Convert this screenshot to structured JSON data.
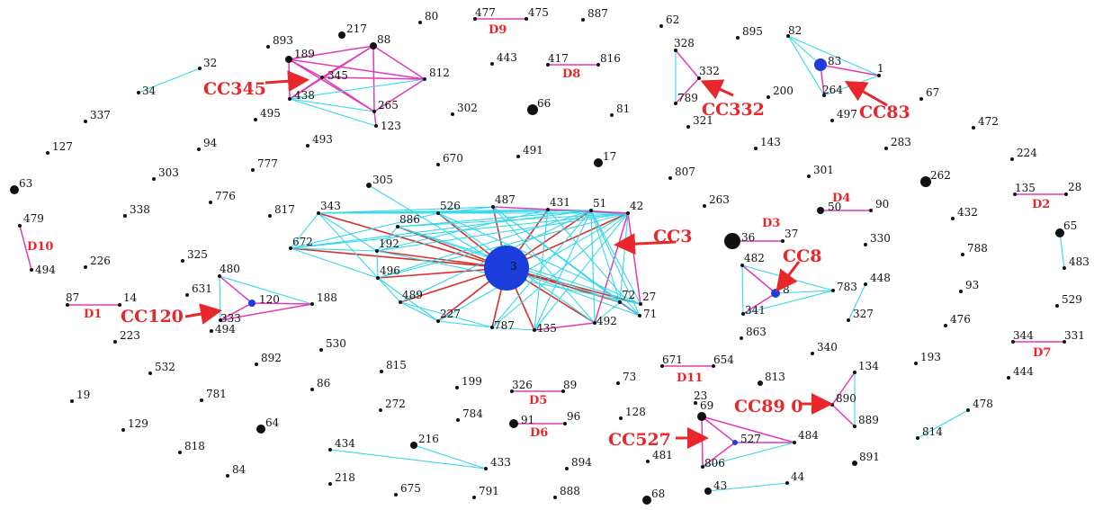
{
  "colors": {
    "background": "#ffffff",
    "node": "#111111",
    "hub_node": "#1a3ddb",
    "label_red": "#e8262b",
    "edge_cyan": "#35d8e8",
    "edge_magenta": "#e13ab8",
    "edge_red": "#d8302c"
  },
  "nodes": [
    {
      "id": "80",
      "label": "80"
    },
    {
      "id": "217",
      "label": "217"
    },
    {
      "id": "477",
      "label": "477"
    },
    {
      "id": "475",
      "label": "475"
    },
    {
      "id": "887",
      "label": "887"
    },
    {
      "id": "62",
      "label": "62"
    },
    {
      "id": "895",
      "label": "895"
    },
    {
      "id": "82",
      "label": "82"
    },
    {
      "id": "893",
      "label": "893"
    },
    {
      "id": "189",
      "label": "189"
    },
    {
      "id": "88",
      "label": "88"
    },
    {
      "id": "345",
      "label": "345"
    },
    {
      "id": "812",
      "label": "812"
    },
    {
      "id": "438",
      "label": "438"
    },
    {
      "id": "265",
      "label": "265"
    },
    {
      "id": "123",
      "label": "123"
    },
    {
      "id": "32",
      "label": "32"
    },
    {
      "id": "34",
      "label": "34"
    },
    {
      "id": "443",
      "label": "443"
    },
    {
      "id": "417",
      "label": "417"
    },
    {
      "id": "816",
      "label": "816"
    },
    {
      "id": "328",
      "label": "328"
    },
    {
      "id": "332",
      "label": "332"
    },
    {
      "id": "789",
      "label": "789"
    },
    {
      "id": "83",
      "label": "83"
    },
    {
      "id": "1",
      "label": "1"
    },
    {
      "id": "264",
      "label": "264"
    },
    {
      "id": "200",
      "label": "200"
    },
    {
      "id": "67",
      "label": "67"
    },
    {
      "id": "495",
      "label": "495"
    },
    {
      "id": "302",
      "label": "302"
    },
    {
      "id": "66",
      "label": "66"
    },
    {
      "id": "81",
      "label": "81"
    },
    {
      "id": "321",
      "label": "321"
    },
    {
      "id": "497",
      "label": "497"
    },
    {
      "id": "472",
      "label": "472"
    },
    {
      "id": "337",
      "label": "337"
    },
    {
      "id": "127",
      "label": "127"
    },
    {
      "id": "94",
      "label": "94"
    },
    {
      "id": "493",
      "label": "493"
    },
    {
      "id": "491",
      "label": "491"
    },
    {
      "id": "17",
      "label": "17"
    },
    {
      "id": "670",
      "label": "670"
    },
    {
      "id": "143",
      "label": "143"
    },
    {
      "id": "283",
      "label": "283"
    },
    {
      "id": "224",
      "label": "224"
    },
    {
      "id": "303",
      "label": "303"
    },
    {
      "id": "777",
      "label": "777"
    },
    {
      "id": "807",
      "label": "807"
    },
    {
      "id": "301",
      "label": "301"
    },
    {
      "id": "262",
      "label": "262"
    },
    {
      "id": "63",
      "label": "63"
    },
    {
      "id": "305",
      "label": "305"
    },
    {
      "id": "135",
      "label": "135"
    },
    {
      "id": "28",
      "label": "28"
    },
    {
      "id": "776",
      "label": "776"
    },
    {
      "id": "263",
      "label": "263"
    },
    {
      "id": "50",
      "label": "50"
    },
    {
      "id": "90",
      "label": "90"
    },
    {
      "id": "338",
      "label": "338"
    },
    {
      "id": "817",
      "label": "817"
    },
    {
      "id": "343",
      "label": "343"
    },
    {
      "id": "526",
      "label": "526"
    },
    {
      "id": "487",
      "label": "487"
    },
    {
      "id": "431",
      "label": "431"
    },
    {
      "id": "51",
      "label": "51"
    },
    {
      "id": "42",
      "label": "42"
    },
    {
      "id": "432",
      "label": "432"
    },
    {
      "id": "479",
      "label": "479"
    },
    {
      "id": "886",
      "label": "886"
    },
    {
      "id": "65",
      "label": "65"
    },
    {
      "id": "36",
      "label": "36"
    },
    {
      "id": "37",
      "label": "37"
    },
    {
      "id": "330",
      "label": "330"
    },
    {
      "id": "672",
      "label": "672"
    },
    {
      "id": "192",
      "label": "192"
    },
    {
      "id": "3",
      "label": "3"
    },
    {
      "id": "788",
      "label": "788"
    },
    {
      "id": "494",
      "label": "494"
    },
    {
      "id": "226",
      "label": "226"
    },
    {
      "id": "325",
      "label": "325"
    },
    {
      "id": "480",
      "label": "480"
    },
    {
      "id": "482",
      "label": "482"
    },
    {
      "id": "483",
      "label": "483"
    },
    {
      "id": "496",
      "label": "496"
    },
    {
      "id": "27",
      "label": "27"
    },
    {
      "id": "783",
      "label": "783"
    },
    {
      "id": "448",
      "label": "448"
    },
    {
      "id": "8",
      "label": "8"
    },
    {
      "id": "93",
      "label": "93"
    },
    {
      "id": "631",
      "label": "631"
    },
    {
      "id": "120",
      "label": "120"
    },
    {
      "id": "188",
      "label": "188"
    },
    {
      "id": "87",
      "label": "87"
    },
    {
      "id": "14",
      "label": "14"
    },
    {
      "id": "489",
      "label": "489"
    },
    {
      "id": "72",
      "label": "72"
    },
    {
      "id": "71",
      "label": "71"
    },
    {
      "id": "327",
      "label": "327"
    },
    {
      "id": "529",
      "label": "529"
    },
    {
      "id": "341",
      "label": "341"
    },
    {
      "id": "333",
      "label": "333"
    },
    {
      "id": "494b",
      "label": "494"
    },
    {
      "id": "227",
      "label": "227"
    },
    {
      "id": "787",
      "label": "787"
    },
    {
      "id": "435",
      "label": "435"
    },
    {
      "id": "492",
      "label": "492"
    },
    {
      "id": "476",
      "label": "476"
    },
    {
      "id": "223",
      "label": "223"
    },
    {
      "id": "863",
      "label": "863"
    },
    {
      "id": "344",
      "label": "344"
    },
    {
      "id": "331",
      "label": "331"
    },
    {
      "id": "530",
      "label": "530"
    },
    {
      "id": "340",
      "label": "340"
    },
    {
      "id": "892",
      "label": "892"
    },
    {
      "id": "671",
      "label": "671"
    },
    {
      "id": "654",
      "label": "654"
    },
    {
      "id": "193",
      "label": "193"
    },
    {
      "id": "532",
      "label": "532"
    },
    {
      "id": "815",
      "label": "815"
    },
    {
      "id": "444",
      "label": "444"
    },
    {
      "id": "813",
      "label": "813"
    },
    {
      "id": "134",
      "label": "134"
    },
    {
      "id": "199",
      "label": "199"
    },
    {
      "id": "326",
      "label": "326"
    },
    {
      "id": "89",
      "label": "89"
    },
    {
      "id": "73",
      "label": "73"
    },
    {
      "id": "86",
      "label": "86"
    },
    {
      "id": "19",
      "label": "19"
    },
    {
      "id": "781",
      "label": "781"
    },
    {
      "id": "272",
      "label": "272"
    },
    {
      "id": "23",
      "label": "23"
    },
    {
      "id": "890",
      "label": "890"
    },
    {
      "id": "784",
      "label": "784"
    },
    {
      "id": "91",
      "label": "91"
    },
    {
      "id": "96",
      "label": "96"
    },
    {
      "id": "128",
      "label": "128"
    },
    {
      "id": "69",
      "label": "69"
    },
    {
      "id": "889",
      "label": "889"
    },
    {
      "id": "478",
      "label": "478"
    },
    {
      "id": "129",
      "label": "129"
    },
    {
      "id": "64",
      "label": "64"
    },
    {
      "id": "527",
      "label": "527"
    },
    {
      "id": "484",
      "label": "484"
    },
    {
      "id": "814",
      "label": "814"
    },
    {
      "id": "818",
      "label": "818"
    },
    {
      "id": "434",
      "label": "434"
    },
    {
      "id": "216",
      "label": "216"
    },
    {
      "id": "481",
      "label": "481"
    },
    {
      "id": "806",
      "label": "806"
    },
    {
      "id": "891",
      "label": "891"
    },
    {
      "id": "433",
      "label": "433"
    },
    {
      "id": "894",
      "label": "894"
    },
    {
      "id": "84",
      "label": "84"
    },
    {
      "id": "218",
      "label": "218"
    },
    {
      "id": "44",
      "label": "44"
    },
    {
      "id": "43",
      "label": "43"
    },
    {
      "id": "675",
      "label": "675"
    },
    {
      "id": "791",
      "label": "791"
    },
    {
      "id": "888",
      "label": "888"
    },
    {
      "id": "68",
      "label": "68"
    }
  ],
  "edges": [
    [
      "477",
      "475",
      "magenta"
    ],
    [
      "417",
      "816",
      "magenta"
    ],
    [
      "32",
      "34",
      "cyan"
    ],
    [
      "328",
      "332",
      "magenta"
    ],
    [
      "332",
      "789",
      "magenta"
    ],
    [
      "328",
      "789",
      "cyan"
    ],
    [
      "82",
      "83",
      "cyan"
    ],
    [
      "82",
      "1",
      "cyan"
    ],
    [
      "83",
      "1",
      "magenta"
    ],
    [
      "83",
      "264",
      "magenta"
    ],
    [
      "82",
      "264",
      "cyan"
    ],
    [
      "264",
      "1",
      "cyan"
    ],
    [
      "189",
      "88",
      "magenta"
    ],
    [
      "189",
      "345",
      "magenta"
    ],
    [
      "189",
      "812",
      "magenta"
    ],
    [
      "189",
      "438",
      "magenta"
    ],
    [
      "189",
      "265",
      "magenta"
    ],
    [
      "88",
      "345",
      "magenta"
    ],
    [
      "88",
      "812",
      "magenta"
    ],
    [
      "88",
      "438",
      "magenta"
    ],
    [
      "88",
      "265",
      "magenta"
    ],
    [
      "345",
      "812",
      "magenta"
    ],
    [
      "345",
      "438",
      "magenta"
    ],
    [
      "345",
      "265",
      "magenta"
    ],
    [
      "812",
      "438",
      "cyan"
    ],
    [
      "812",
      "265",
      "magenta"
    ],
    [
      "438",
      "265",
      "cyan"
    ],
    [
      "438",
      "123",
      "cyan"
    ],
    [
      "265",
      "123",
      "magenta"
    ],
    [
      "135",
      "28",
      "magenta"
    ],
    [
      "50",
      "90",
      "magenta"
    ],
    [
      "36",
      "37",
      "magenta"
    ],
    [
      "479",
      "494",
      "magenta"
    ],
    [
      "65",
      "483",
      "cyan"
    ],
    [
      "3",
      "343",
      "red"
    ],
    [
      "3",
      "526",
      "red"
    ],
    [
      "3",
      "487",
      "red"
    ],
    [
      "3",
      "431",
      "red"
    ],
    [
      "3",
      "51",
      "red"
    ],
    [
      "3",
      "42",
      "red"
    ],
    [
      "3",
      "886",
      "red"
    ],
    [
      "3",
      "192",
      "red"
    ],
    [
      "3",
      "672",
      "red"
    ],
    [
      "3",
      "496",
      "red"
    ],
    [
      "3",
      "489",
      "red"
    ],
    [
      "3",
      "227",
      "red"
    ],
    [
      "3",
      "787",
      "red"
    ],
    [
      "3",
      "435",
      "red"
    ],
    [
      "3",
      "492",
      "red"
    ],
    [
      "3",
      "72",
      "red"
    ],
    [
      "3",
      "27",
      "red"
    ],
    [
      "3",
      "305",
      "cyan"
    ],
    [
      "3",
      "71",
      "cyan"
    ],
    [
      "343",
      "526",
      "cyan"
    ],
    [
      "343",
      "487",
      "cyan"
    ],
    [
      "343",
      "431",
      "cyan"
    ],
    [
      "343",
      "51",
      "cyan"
    ],
    [
      "343",
      "672",
      "cyan"
    ],
    [
      "343",
      "192",
      "cyan"
    ],
    [
      "343",
      "496",
      "cyan"
    ],
    [
      "526",
      "487",
      "cyan"
    ],
    [
      "487",
      "431",
      "cyan"
    ],
    [
      "431",
      "51",
      "cyan"
    ],
    [
      "51",
      "42",
      "cyan"
    ],
    [
      "672",
      "192",
      "cyan"
    ],
    [
      "672",
      "526",
      "cyan"
    ],
    [
      "672",
      "51",
      "cyan"
    ],
    [
      "672",
      "42",
      "cyan"
    ],
    [
      "672",
      "496",
      "cyan"
    ],
    [
      "886",
      "51",
      "cyan"
    ],
    [
      "886",
      "42",
      "cyan"
    ],
    [
      "886",
      "72",
      "cyan"
    ],
    [
      "886",
      "192",
      "cyan"
    ],
    [
      "192",
      "431",
      "cyan"
    ],
    [
      "192",
      "42",
      "cyan"
    ],
    [
      "192",
      "27",
      "cyan"
    ],
    [
      "192",
      "496",
      "cyan"
    ],
    [
      "496",
      "489",
      "cyan"
    ],
    [
      "496",
      "51",
      "cyan"
    ],
    [
      "496",
      "42",
      "cyan"
    ],
    [
      "496",
      "227",
      "cyan"
    ],
    [
      "489",
      "227",
      "cyan"
    ],
    [
      "489",
      "787",
      "cyan"
    ],
    [
      "489",
      "51",
      "cyan"
    ],
    [
      "227",
      "787",
      "cyan"
    ],
    [
      "227",
      "42",
      "cyan"
    ],
    [
      "787",
      "435",
      "cyan"
    ],
    [
      "787",
      "42",
      "cyan"
    ],
    [
      "787",
      "51",
      "cyan"
    ],
    [
      "435",
      "492",
      "magenta"
    ],
    [
      "435",
      "42",
      "cyan"
    ],
    [
      "435",
      "51",
      "cyan"
    ],
    [
      "435",
      "431",
      "cyan"
    ],
    [
      "492",
      "72",
      "cyan"
    ],
    [
      "492",
      "51",
      "cyan"
    ],
    [
      "492",
      "42",
      "magenta"
    ],
    [
      "492",
      "526",
      "cyan"
    ],
    [
      "492",
      "487",
      "cyan"
    ],
    [
      "72",
      "71",
      "magenta"
    ],
    [
      "72",
      "42",
      "cyan"
    ],
    [
      "72",
      "51",
      "cyan"
    ],
    [
      "72",
      "487",
      "cyan"
    ],
    [
      "27",
      "42",
      "magenta"
    ],
    [
      "27",
      "51",
      "cyan"
    ],
    [
      "27",
      "526",
      "cyan"
    ],
    [
      "27",
      "886",
      "cyan"
    ],
    [
      "71",
      "51",
      "cyan"
    ],
    [
      "71",
      "431",
      "cyan"
    ],
    [
      "71",
      "487",
      "cyan"
    ],
    [
      "42",
      "526",
      "cyan"
    ],
    [
      "42",
      "487",
      "magenta"
    ],
    [
      "42",
      "431",
      "magenta"
    ],
    [
      "51",
      "526",
      "cyan"
    ],
    [
      "480",
      "120",
      "magenta"
    ],
    [
      "480",
      "333",
      "cyan"
    ],
    [
      "480",
      "188",
      "cyan"
    ],
    [
      "120",
      "188",
      "magenta"
    ],
    [
      "120",
      "333",
      "magenta"
    ],
    [
      "333",
      "188",
      "magenta"
    ],
    [
      "482",
      "8",
      "magenta"
    ],
    [
      "482",
      "783",
      "cyan"
    ],
    [
      "482",
      "341",
      "cyan"
    ],
    [
      "8",
      "783",
      "cyan"
    ],
    [
      "8",
      "341",
      "magenta"
    ],
    [
      "341",
      "783",
      "cyan"
    ],
    [
      "448",
      "327",
      "cyan"
    ],
    [
      "87",
      "14",
      "magenta"
    ],
    [
      "344",
      "331",
      "magenta"
    ],
    [
      "671",
      "654",
      "magenta"
    ],
    [
      "134",
      "890",
      "magenta"
    ],
    [
      "890",
      "889",
      "magenta"
    ],
    [
      "134",
      "889",
      "cyan"
    ],
    [
      "326",
      "89",
      "magenta"
    ],
    [
      "91",
      "96",
      "magenta"
    ],
    [
      "478",
      "814",
      "cyan"
    ],
    [
      "69",
      "527",
      "magenta"
    ],
    [
      "69",
      "806",
      "magenta"
    ],
    [
      "527",
      "484",
      "magenta"
    ],
    [
      "527",
      "806",
      "magenta"
    ],
    [
      "806",
      "484",
      "cyan"
    ],
    [
      "69",
      "484",
      "magenta"
    ],
    [
      "434",
      "433",
      "cyan"
    ],
    [
      "216",
      "433",
      "cyan"
    ],
    [
      "43",
      "44",
      "cyan"
    ]
  ],
  "cluster_labels": [
    {
      "id": "CC345",
      "text": "CC345"
    },
    {
      "id": "CC332",
      "text": "CC332"
    },
    {
      "id": "CC83",
      "text": "CC83"
    },
    {
      "id": "CC3",
      "text": "CC3"
    },
    {
      "id": "CC8",
      "text": "CC8"
    },
    {
      "id": "CC120",
      "text": "CC120"
    },
    {
      "id": "CC890",
      "text": "CC89 0"
    },
    {
      "id": "CC527",
      "text": "CC527"
    }
  ],
  "dyad_labels": [
    {
      "id": "D9",
      "text": "D9"
    },
    {
      "id": "D8",
      "text": "D8"
    },
    {
      "id": "D4",
      "text": "D4"
    },
    {
      "id": "D2",
      "text": "D2"
    },
    {
      "id": "D3",
      "text": "D3"
    },
    {
      "id": "D10",
      "text": "D10"
    },
    {
      "id": "D1",
      "text": "D1"
    },
    {
      "id": "D7",
      "text": "D7"
    },
    {
      "id": "D11",
      "text": "D11"
    },
    {
      "id": "D5",
      "text": "D5"
    },
    {
      "id": "D6",
      "text": "D6"
    }
  ]
}
